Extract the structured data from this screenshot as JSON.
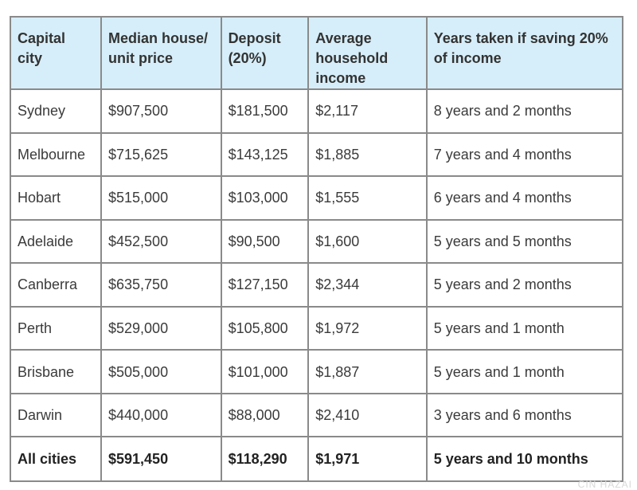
{
  "table": {
    "headers": [
      "Capital city",
      "Median house/ unit price",
      "Deposit (20%)",
      "Average household income",
      "Years taken if saving 20% of income"
    ],
    "rows": [
      [
        "Sydney",
        "$907,500",
        "$181,500",
        "$2,117",
        "8 years and 2 months"
      ],
      [
        "Melbourne",
        "$715,625",
        "$143,125",
        "$1,885",
        "7 years and 4 months"
      ],
      [
        "Hobart",
        "$515,000",
        "$103,000",
        "$1,555",
        "6 years and 4 months"
      ],
      [
        "Adelaide",
        "$452,500",
        "$90,500",
        "$1,600",
        "5 years and 5 months"
      ],
      [
        "Canberra",
        "$635,750",
        "$127,150",
        "$2,344",
        "5 years and 2 months"
      ],
      [
        "Perth",
        "$529,000",
        "$105,800",
        "$1,972",
        "5 years and 1 month"
      ],
      [
        "Brisbane",
        "$505,000",
        "$101,000",
        "$1,887",
        "5 years and 1 month"
      ],
      [
        "Darwin",
        "$440,000",
        "$88,000",
        "$2,410",
        "3 years and 6 months"
      ]
    ],
    "total": [
      "All cities",
      "$591,450",
      "$118,290",
      "$1,971",
      "5 years and 10 months"
    ]
  },
  "watermark": "CIN HAZAI"
}
